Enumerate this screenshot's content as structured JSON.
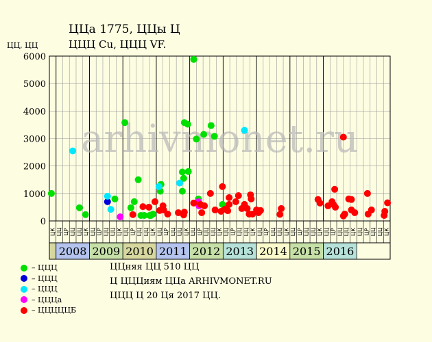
{
  "title_line1": "ЦЦа 1775, ЦЦы Ц",
  "title_line2": "ЦЦЦ Cu, ЦЦЦ VF.",
  "ylabel": "ЦЦ, ЦЦ",
  "watermark": "arhivmonet.ru",
  "notes": [
    "ЦЦняя ЦЦ 510 ЦЦ",
    "Ц ЦЦЦиям ЦЦа ARHIVMONET.RU",
    "ЦЦЦ Ц 20 Ця 2017 ЦЦ."
  ],
  "legend": [
    {
      "label": "– ЦЦЦ",
      "color": "#00e000"
    },
    {
      "label": "– ЦЦЦ",
      "color": "#0000dd"
    },
    {
      "label": "– ЦЦЦ",
      "color": "#00e8ff"
    },
    {
      "label": "– ЦЦЦа",
      "color": "#ff00ff"
    },
    {
      "label": "– ЦЦЦЦЦБ",
      "color": "#ff0000"
    }
  ],
  "chart_data": {
    "type": "scatter",
    "ylim": [
      0,
      6000
    ],
    "yticks": [
      0,
      1000,
      2000,
      3000,
      4000,
      5000,
      6000
    ],
    "grid": true,
    "month_labels": [
      "ЦК",
      "ЦЦ",
      "ЦР",
      "ЦЦ",
      "ЦЦ",
      "ЦК",
      "ЦЦ",
      "ЦР",
      "ЦЦ",
      "ЦЦ",
      "ЦК",
      "ЦЦ",
      "ЦР",
      "ЦЦ",
      "ЦЦ",
      "ЦК",
      "ЦЦ",
      "ЦР",
      "ЦЦ",
      "ЦЦ",
      "ЦК",
      "ЦЦ",
      "ЦР",
      "ЦЦ",
      "ЦЦ",
      "ЦК",
      "ЦЦ",
      "ЦР",
      "ЦЦ",
      "ЦЦ",
      "ЦК",
      "ЦЦ",
      "ЦР",
      "ЦЦ",
      "ЦЦ",
      "ЦК",
      "ЦЦ",
      "ЦР",
      "ЦЦ",
      "ЦЦ",
      "ЦК",
      "ЦЦ",
      "ЦР",
      "ЦЦ",
      "ЦЦ",
      "ЦК",
      "ЦЦ",
      "ЦР",
      "ЦЦ",
      "ЦЦ",
      "ЦК",
      "ЦЦ",
      "ЦР",
      "ЦЦ",
      "ЦЦ",
      "ЦК",
      "ЦЦ",
      "ЦР",
      "ЦЦ",
      "ЦЦ",
      "ЦК",
      "ЦЦ",
      "ЦР",
      "ЦЦ",
      "ЦЦ",
      "ЦК",
      "ЦЦ",
      "ЦР",
      "ЦЦ",
      "ЦЦ",
      "ЦК",
      "ЦЦ",
      "ЦР",
      "ЦЦ",
      "ЦЦ",
      "ЦК",
      "ЦЦ",
      "ЦР",
      "ЦЦ",
      "ЦЦ",
      "ЦК",
      "ЦЦ",
      "ЦР",
      "ЦЦ",
      "ЦЦ",
      "ЦК",
      "ЦЦ",
      "ЦР",
      "ЦЦ",
      "ЦЦ",
      "ЦК",
      "ЦЦ",
      "ЦР",
      "ЦЦ",
      "ЦЦ",
      "ЦК",
      "ЦЦ",
      "ЦР",
      "ЦЦ",
      "ЦЦ"
    ],
    "years": [
      {
        "label": "",
        "color": "#d6d8a0"
      },
      {
        "label": "2008",
        "color": "#b4c4ee"
      },
      {
        "label": "2009",
        "color": "#c6e0a8"
      },
      {
        "label": "2010",
        "color": "#d6d8a0"
      },
      {
        "label": "2011",
        "color": "#b4c4ee"
      },
      {
        "label": "2012",
        "color": "#c6e0a8"
      },
      {
        "label": "2013",
        "color": "#b6e2da"
      },
      {
        "label": "2014",
        "color": "#fafacc"
      },
      {
        "label": "2015",
        "color": "#c6e0a8"
      },
      {
        "label": "2016",
        "color": "#b6e2da"
      }
    ],
    "series": [
      {
        "color": "#00e000",
        "points": [
          [
            0.3,
            1000
          ],
          [
            4.5,
            480
          ],
          [
            5.4,
            230
          ],
          [
            9.8,
            800
          ],
          [
            11.3,
            3580
          ],
          [
            12.2,
            480
          ],
          [
            12.7,
            700
          ],
          [
            13.3,
            1500
          ],
          [
            13.7,
            200
          ],
          [
            14.2,
            200
          ],
          [
            15.0,
            200
          ],
          [
            15.2,
            200
          ],
          [
            15.5,
            250
          ],
          [
            16.6,
            1080
          ],
          [
            16.7,
            1330
          ],
          [
            19.9,
            1080
          ],
          [
            19.9,
            1780
          ],
          [
            20.1,
            1550
          ],
          [
            20.2,
            3580
          ],
          [
            20.7,
            3520
          ],
          [
            20.8,
            1800
          ],
          [
            21.6,
            5880
          ],
          [
            22.0,
            2980
          ],
          [
            22.3,
            800
          ],
          [
            23.1,
            3150
          ],
          [
            24.2,
            3470
          ],
          [
            24.7,
            3080
          ],
          [
            25.9,
            600
          ],
          [
            26.1,
            550
          ]
        ]
      },
      {
        "color": "#0000dd",
        "points": [
          [
            8.7,
            700
          ]
        ]
      },
      {
        "color": "#00e8ff",
        "points": [
          [
            3.5,
            2550
          ],
          [
            8.7,
            900
          ],
          [
            9.2,
            420
          ],
          [
            16.4,
            1250
          ],
          [
            19.5,
            1380
          ],
          [
            29.2,
            3300
          ]
        ]
      },
      {
        "color": "#ff00ff",
        "points": [
          [
            10.6,
            150
          ],
          [
            22.3,
            700
          ],
          [
            22.4,
            550
          ]
        ]
      },
      {
        "color": "#ff0000",
        "points": [
          [
            12.5,
            230
          ],
          [
            14.0,
            520
          ],
          [
            14.9,
            500
          ],
          [
            15.8,
            700
          ],
          [
            16.5,
            380
          ],
          [
            17.0,
            550
          ],
          [
            17.1,
            400
          ],
          [
            17.7,
            250
          ],
          [
            19.3,
            300
          ],
          [
            20.1,
            220
          ],
          [
            20.2,
            320
          ],
          [
            21.6,
            650
          ],
          [
            22.6,
            600
          ],
          [
            22.8,
            300
          ],
          [
            23.2,
            550
          ],
          [
            24.1,
            1000
          ],
          [
            24.8,
            400
          ],
          [
            25.7,
            350
          ],
          [
            25.9,
            1250
          ],
          [
            26.3,
            430
          ],
          [
            26.7,
            370
          ],
          [
            26.9,
            850
          ],
          [
            26.9,
            600
          ],
          [
            27.9,
            700
          ],
          [
            28.3,
            920
          ],
          [
            28.8,
            450
          ],
          [
            29.2,
            600
          ],
          [
            29.6,
            450
          ],
          [
            29.9,
            250
          ],
          [
            30.1,
            950
          ],
          [
            30.2,
            800
          ],
          [
            30.4,
            250
          ],
          [
            31.0,
            400
          ],
          [
            31.3,
            300
          ],
          [
            31.6,
            380
          ],
          [
            34.5,
            240
          ],
          [
            34.7,
            450
          ],
          [
            40.2,
            780
          ],
          [
            40.5,
            650
          ],
          [
            41.7,
            550
          ],
          [
            42.3,
            700
          ],
          [
            42.5,
            600
          ],
          [
            42.7,
            1150
          ],
          [
            42.8,
            500
          ],
          [
            44.2,
            250
          ],
          [
            44.8,
            800
          ],
          [
            45.2,
            400
          ],
          [
            45.2,
            780
          ],
          [
            45.7,
            300
          ],
          [
            47.6,
            1000
          ],
          [
            47.7,
            250
          ],
          [
            48.2,
            400
          ],
          [
            50.1,
            200
          ],
          [
            50.2,
            350
          ],
          [
            50.6,
            660
          ],
          [
            44.0,
            180
          ],
          [
            44.0,
            3050
          ]
        ]
      }
    ]
  }
}
